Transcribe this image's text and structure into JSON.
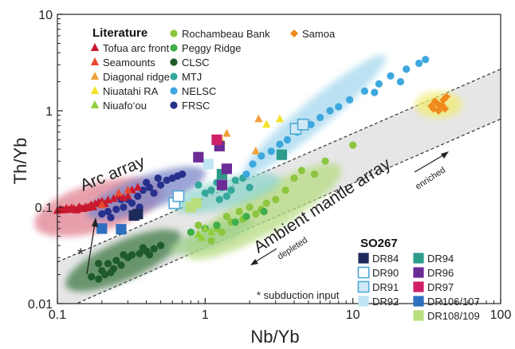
{
  "chart_data": {
    "type": "scatter",
    "xlabel": "Nb/Yb",
    "ylabel": "Th/Yb",
    "xscale": "log",
    "yscale": "log",
    "xlim": [
      0.1,
      100
    ],
    "ylim": [
      0.01,
      10
    ],
    "x_ticks": [
      "0.1",
      "1",
      "10",
      "100"
    ],
    "y_ticks": [
      "0.01",
      "0.1",
      "1",
      "10"
    ],
    "grid": false,
    "legend_groups": [
      {
        "title": "Literature",
        "position": "top-left"
      },
      {
        "title": "SO267",
        "position": "bottom-right"
      }
    ],
    "annotations": {
      "arc_array": "Arc array",
      "mantle_array": "Ambient mantle array",
      "enriched": "enriched",
      "depleted": "depleted",
      "star": "*",
      "subduction_note": "* subduction input"
    },
    "mantle_array_band": {
      "lower_line": [
        [
          0.1,
          0.0082
        ],
        [
          100,
          0.82
        ]
      ],
      "upper_line": [
        [
          0.1,
          0.027
        ],
        [
          100,
          2.7
        ]
      ],
      "color": "#e6e6e6"
    },
    "fields": [
      {
        "series": "Arc array",
        "color": "#e08090",
        "center": [
          0.19,
          0.1
        ],
        "width_decades": 0.9,
        "height_decades": 0.5,
        "angle": 16
      },
      {
        "series": "FRSC",
        "color": "#7a86c8",
        "center": [
          0.4,
          0.14
        ],
        "width_decades": 0.85,
        "height_decades": 0.35,
        "angle": 20
      },
      {
        "series": "CLSC",
        "color": "#3f7a45",
        "center": [
          0.28,
          0.028
        ],
        "width_decades": 0.85,
        "height_decades": 0.4,
        "angle": 24
      },
      {
        "series": "Rochambeau Bank",
        "color": "#b8dc82",
        "center": [
          2.5,
          0.09
        ],
        "width_decades": 1.2,
        "height_decades": 0.45,
        "angle": 30
      },
      {
        "series": "Peggy Ridge",
        "color": "#9fd08c",
        "center": [
          1.1,
          0.05
        ],
        "width_decades": 0.6,
        "height_decades": 0.22,
        "angle": 20
      },
      {
        "series": "MTJ",
        "color": "#8fd6cc",
        "center": [
          1.4,
          0.14
        ],
        "width_decades": 0.75,
        "height_decades": 0.3,
        "angle": 15
      },
      {
        "series": "NELSC",
        "color": "#a6d8ee",
        "center": [
          5.5,
          0.9
        ],
        "width_decades": 1.25,
        "height_decades": 0.3,
        "angle": 40
      },
      {
        "series": "Samoa",
        "color": "#f2ec74",
        "center": [
          38,
          1.15
        ],
        "width_decades": 0.32,
        "height_decades": 0.28,
        "angle": 0
      }
    ],
    "series": [
      {
        "name": "Tofua arc front",
        "group": "Literature",
        "marker": "triangle",
        "color": "#c8192e",
        "points": [
          [
            0.1,
            0.092
          ],
          [
            0.105,
            0.095
          ],
          [
            0.11,
            0.093
          ],
          [
            0.115,
            0.097
          ],
          [
            0.12,
            0.094
          ],
          [
            0.125,
            0.098
          ],
          [
            0.13,
            0.096
          ],
          [
            0.135,
            0.093
          ],
          [
            0.14,
            0.1
          ],
          [
            0.145,
            0.097
          ],
          [
            0.15,
            0.096
          ],
          [
            0.155,
            0.1
          ],
          [
            0.16,
            0.098
          ],
          [
            0.165,
            0.101
          ],
          [
            0.17,
            0.105
          ],
          [
            0.175,
            0.1
          ],
          [
            0.18,
            0.108
          ],
          [
            0.19,
            0.112
          ],
          [
            0.2,
            0.115
          ],
          [
            0.21,
            0.108
          ],
          [
            0.22,
            0.118
          ],
          [
            0.24,
            0.122
          ],
          [
            0.26,
            0.13
          ],
          [
            0.28,
            0.125
          ],
          [
            0.3,
            0.13
          ],
          [
            0.32,
            0.15
          ],
          [
            0.35,
            0.16
          ]
        ]
      },
      {
        "name": "Seamounts",
        "group": "Literature",
        "marker": "triangle",
        "color": "#e84c2f",
        "points": [
          [
            0.2,
            0.105
          ],
          [
            0.26,
            0.14
          ],
          [
            0.3,
            0.15
          ]
        ]
      },
      {
        "name": "Diagonal ridge",
        "group": "Literature",
        "marker": "triangle",
        "color": "#f0a23c",
        "points": [
          [
            2.3,
            0.82
          ],
          [
            1.4,
            0.58
          ],
          [
            2.2,
            0.38
          ]
        ]
      },
      {
        "name": "Niuatahi RA",
        "group": "Literature",
        "marker": "triangle",
        "color": "#f2e329",
        "points": [
          [
            2.6,
            0.72
          ],
          [
            3.2,
            0.82
          ],
          [
            1.3,
            0.48
          ]
        ]
      },
      {
        "name": "Niuafo‘ou",
        "group": "Literature",
        "marker": "triangle",
        "color": "#8fcf3c",
        "points": [
          [
            0.9,
            0.052
          ],
          [
            1.0,
            0.06
          ],
          [
            0.95,
            0.048
          ],
          [
            1.1,
            0.055
          ]
        ]
      },
      {
        "name": "Rochambeau Bank",
        "group": "Literature",
        "marker": "circle",
        "color": "#8cc63f",
        "points": [
          [
            1.1,
            0.045
          ],
          [
            1.3,
            0.055
          ],
          [
            1.5,
            0.07
          ],
          [
            1.8,
            0.075
          ],
          [
            2.0,
            0.1
          ],
          [
            2.2,
            0.085
          ],
          [
            2.6,
            0.11
          ],
          [
            3.0,
            0.12
          ],
          [
            3.5,
            0.15
          ],
          [
            4.0,
            0.2
          ],
          [
            4.5,
            0.24
          ],
          [
            5.5,
            0.22
          ],
          [
            6.5,
            0.3
          ],
          [
            10,
            0.44
          ],
          [
            1.2,
            0.06
          ],
          [
            1.4,
            0.08
          ],
          [
            1.7,
            0.09
          ],
          [
            2.4,
            0.095
          ],
          [
            0.9,
            0.065
          ]
        ]
      },
      {
        "name": "Peggy Ridge",
        "group": "Literature",
        "marker": "circle",
        "color": "#3fae49",
        "points": [
          [
            0.8,
            0.055
          ],
          [
            1.0,
            0.06
          ],
          [
            1.2,
            0.065
          ],
          [
            1.6,
            0.07
          ],
          [
            1.9,
            0.08
          ],
          [
            2.5,
            0.09
          ]
        ]
      },
      {
        "name": "CLSC",
        "group": "Literature",
        "marker": "circle",
        "color": "#1f5a2a",
        "points": [
          [
            0.17,
            0.019
          ],
          [
            0.19,
            0.018
          ],
          [
            0.2,
            0.022
          ],
          [
            0.21,
            0.02
          ],
          [
            0.23,
            0.021
          ],
          [
            0.22,
            0.026
          ],
          [
            0.24,
            0.023
          ],
          [
            0.19,
            0.026
          ],
          [
            0.25,
            0.028
          ],
          [
            0.27,
            0.025
          ],
          [
            0.3,
            0.03
          ],
          [
            0.32,
            0.032
          ],
          [
            0.36,
            0.033
          ],
          [
            0.4,
            0.035
          ],
          [
            0.45,
            0.037
          ],
          [
            0.5,
            0.04
          ],
          [
            0.42,
            0.032
          ],
          [
            0.38,
            0.038
          ],
          [
            0.28,
            0.032
          ]
        ]
      },
      {
        "name": "MTJ",
        "group": "Literature",
        "marker": "circle",
        "color": "#35a89a",
        "points": [
          [
            0.9,
            0.17
          ],
          [
            1.0,
            0.14
          ],
          [
            1.1,
            0.15
          ],
          [
            1.2,
            0.18
          ],
          [
            1.3,
            0.16
          ],
          [
            1.4,
            0.13
          ],
          [
            1.5,
            0.15
          ],
          [
            1.6,
            0.19
          ],
          [
            1.8,
            0.2
          ],
          [
            2.0,
            0.16
          ],
          [
            1.25,
            0.12
          ]
        ]
      },
      {
        "name": "NELSC",
        "group": "Literature",
        "marker": "circle",
        "color": "#3ea7dd",
        "points": [
          [
            1.9,
            0.22
          ],
          [
            2.1,
            0.28
          ],
          [
            2.4,
            0.34
          ],
          [
            2.8,
            0.38
          ],
          [
            3.2,
            0.45
          ],
          [
            3.6,
            0.5
          ],
          [
            4.2,
            0.6
          ],
          [
            5.2,
            0.72
          ],
          [
            6.0,
            0.85
          ],
          [
            7.0,
            1.0
          ],
          [
            8.0,
            1.1
          ],
          [
            9.5,
            1.3
          ],
          [
            12,
            1.6
          ],
          [
            15,
            1.9
          ],
          [
            18,
            2.3
          ],
          [
            23,
            2.7
          ],
          [
            28,
            3.1
          ],
          [
            31,
            3.4
          ],
          [
            21,
            2.0
          ],
          [
            14,
            1.55
          ]
        ]
      },
      {
        "name": "FRSC",
        "group": "Literature",
        "marker": "circle",
        "color": "#27308c",
        "points": [
          [
            0.2,
            0.085
          ],
          [
            0.22,
            0.09
          ],
          [
            0.25,
            0.095
          ],
          [
            0.28,
            0.1
          ],
          [
            0.3,
            0.12
          ],
          [
            0.32,
            0.11
          ],
          [
            0.35,
            0.13
          ],
          [
            0.38,
            0.15
          ],
          [
            0.42,
            0.16
          ],
          [
            0.45,
            0.14
          ],
          [
            0.5,
            0.17
          ],
          [
            0.55,
            0.19
          ],
          [
            0.6,
            0.2
          ],
          [
            0.65,
            0.21
          ],
          [
            0.7,
            0.22
          ],
          [
            0.36,
            0.1
          ],
          [
            0.27,
            0.12
          ],
          [
            0.23,
            0.078
          ],
          [
            0.4,
            0.18
          ],
          [
            0.48,
            0.2
          ]
        ]
      },
      {
        "name": "Samoa",
        "group": "Literature",
        "marker": "diamond",
        "color": "#f08a1c",
        "points": [
          [
            35,
            1.05
          ],
          [
            37,
            1.2
          ],
          [
            39,
            1.1
          ],
          [
            41,
            1.3
          ],
          [
            38,
            1.0
          ],
          [
            36,
            1.25
          ],
          [
            40,
            1.15
          ],
          [
            42,
            1.05
          ],
          [
            34,
            1.12
          ],
          [
            43,
            1.4
          ]
        ]
      },
      {
        "name": "DR84",
        "group": "SO267",
        "marker": "square",
        "color": "#1e2a5c",
        "filled": true,
        "points": [
          [
            0.33,
            0.082
          ],
          [
            0.35,
            0.085
          ]
        ]
      },
      {
        "name": "DR90",
        "group": "SO267",
        "marker": "square",
        "color": "#4fa8d8",
        "filled": false,
        "points": [
          [
            0.62,
            0.11
          ],
          [
            0.66,
            0.13
          ]
        ]
      },
      {
        "name": "DR91",
        "group": "SO267",
        "marker": "square",
        "color": "#4fa8d8",
        "filled": "light",
        "points": [
          [
            4.1,
            0.65
          ],
          [
            4.6,
            0.72
          ]
        ]
      },
      {
        "name": "DR92",
        "group": "SO267",
        "marker": "square",
        "color": "#bfe6f2",
        "filled": true,
        "points": [
          [
            1.05,
            0.28
          ]
        ]
      },
      {
        "name": "DR94",
        "group": "SO267",
        "marker": "square",
        "color": "#2e9c8c",
        "filled": true,
        "points": [
          [
            1.3,
            0.22
          ],
          [
            3.3,
            0.35
          ]
        ]
      },
      {
        "name": "DR96",
        "group": "SO267",
        "marker": "square",
        "color": "#6b2c96",
        "filled": true,
        "points": [
          [
            0.9,
            0.33
          ],
          [
            1.25,
            0.43
          ],
          [
            1.4,
            0.25
          ],
          [
            1.3,
            0.17
          ]
        ]
      },
      {
        "name": "DR97",
        "group": "SO267",
        "marker": "square",
        "color": "#d0206a",
        "filled": true,
        "points": [
          [
            1.2,
            0.5
          ]
        ]
      },
      {
        "name": "DR106/107",
        "group": "SO267",
        "marker": "square",
        "color": "#2f6fc0",
        "filled": true,
        "points": [
          [
            0.2,
            0.06
          ],
          [
            0.27,
            0.059
          ]
        ]
      },
      {
        "name": "DR108/109",
        "group": "SO267",
        "marker": "square",
        "color": "#b8de7e",
        "filled": true,
        "points": [
          [
            0.8,
            0.1
          ],
          [
            0.87,
            0.11
          ]
        ]
      }
    ]
  }
}
